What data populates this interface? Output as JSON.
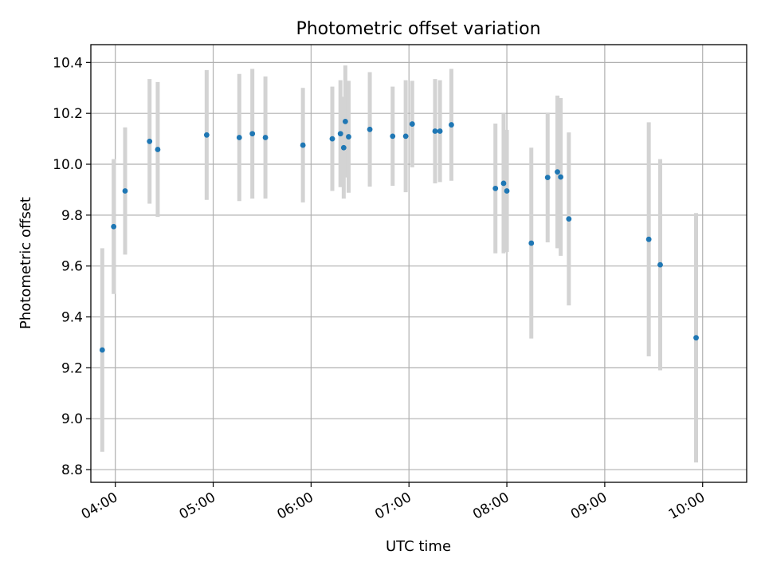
{
  "chart_data": {
    "type": "scatter",
    "title": "Photometric offset variation",
    "xlabel": "UTC time",
    "ylabel": "Photometric offset",
    "xlim": [
      "03:45",
      "10:27"
    ],
    "ylim": [
      8.75,
      10.47
    ],
    "xticks": [
      "04:00",
      "05:00",
      "06:00",
      "07:00",
      "08:00",
      "09:00",
      "10:00"
    ],
    "yticks": [
      "8.8",
      "9.0",
      "9.2",
      "9.4",
      "9.6",
      "9.8",
      "10.0",
      "10.2",
      "10.4"
    ],
    "grid": true,
    "colors": {
      "point": "#1f77b4",
      "errorbar": "#d3d3d3"
    },
    "points": [
      {
        "x": "03:52",
        "y": 9.27,
        "err": 0.4
      },
      {
        "x": "03:59",
        "y": 9.755,
        "err": 0.265
      },
      {
        "x": "04:06",
        "y": 9.895,
        "err": 0.25
      },
      {
        "x": "04:21",
        "y": 10.09,
        "err": 0.245
      },
      {
        "x": "04:26",
        "y": 10.058,
        "err": 0.265
      },
      {
        "x": "04:56",
        "y": 10.115,
        "err": 0.255
      },
      {
        "x": "05:16",
        "y": 10.105,
        "err": 0.25
      },
      {
        "x": "05:24",
        "y": 10.12,
        "err": 0.255
      },
      {
        "x": "05:32",
        "y": 10.105,
        "err": 0.24
      },
      {
        "x": "05:55",
        "y": 10.075,
        "err": 0.225
      },
      {
        "x": "06:13",
        "y": 10.1,
        "err": 0.205
      },
      {
        "x": "06:18",
        "y": 10.12,
        "err": 0.21
      },
      {
        "x": "06:20",
        "y": 10.065,
        "err": 0.2
      },
      {
        "x": "06:21",
        "y": 10.168,
        "err": 0.22
      },
      {
        "x": "06:23",
        "y": 10.108,
        "err": 0.22
      },
      {
        "x": "06:36",
        "y": 10.137,
        "err": 0.225
      },
      {
        "x": "06:50",
        "y": 10.11,
        "err": 0.195
      },
      {
        "x": "06:58",
        "y": 10.11,
        "err": 0.22
      },
      {
        "x": "07:02",
        "y": 10.158,
        "err": 0.17
      },
      {
        "x": "07:16",
        "y": 10.13,
        "err": 0.205
      },
      {
        "x": "07:19",
        "y": 10.13,
        "err": 0.2
      },
      {
        "x": "07:26",
        "y": 10.155,
        "err": 0.22
      },
      {
        "x": "07:53",
        "y": 9.905,
        "err": 0.255
      },
      {
        "x": "07:58",
        "y": 9.925,
        "err": 0.275
      },
      {
        "x": "08:00",
        "y": 9.895,
        "err": 0.24
      },
      {
        "x": "08:15",
        "y": 9.69,
        "err": 0.375
      },
      {
        "x": "08:25",
        "y": 9.948,
        "err": 0.255
      },
      {
        "x": "08:31",
        "y": 9.97,
        "err": 0.3
      },
      {
        "x": "08:33",
        "y": 9.95,
        "err": 0.31
      },
      {
        "x": "08:38",
        "y": 9.785,
        "err": 0.34
      },
      {
        "x": "09:27",
        "y": 9.705,
        "err": 0.46
      },
      {
        "x": "09:34",
        "y": 9.605,
        "err": 0.415
      },
      {
        "x": "09:56",
        "y": 9.318,
        "err": 0.49
      }
    ]
  }
}
